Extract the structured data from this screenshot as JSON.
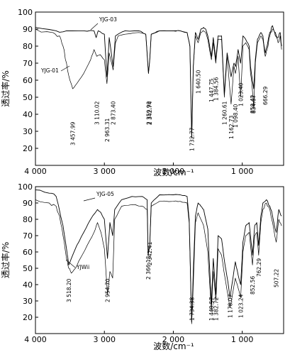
{
  "chart_data": [
    {
      "type": "line",
      "title": "",
      "xlabel": "波数/cm⁻¹",
      "ylabel": "透过率/%",
      "xlim": [
        4000,
        400
      ],
      "ylim": [
        10,
        100
      ],
      "x_ticks": [
        "4 000",
        "3 000",
        "2 000",
        "1 000"
      ],
      "x_tick_values": [
        4000,
        3000,
        2000,
        1000
      ],
      "y_ticks": [
        100,
        90,
        80,
        70,
        60,
        50,
        40,
        30,
        20
      ],
      "series": [
        {
          "name": "YJG-03",
          "x": [
            4000,
            3700,
            3550,
            3300,
            3150,
            3120,
            3090,
            3000,
            2963,
            2930,
            2873,
            2840,
            2700,
            2500,
            2400,
            2360,
            2342,
            2320,
            2200,
            2000,
            1900,
            1800,
            1760,
            1733,
            1710,
            1680,
            1640,
            1600,
            1560,
            1530,
            1500,
            1447,
            1420,
            1384,
            1350,
            1300,
            1260,
            1220,
            1162,
            1120,
            1098,
            1060,
            1023,
            990,
            950,
            900,
            880,
            860,
            834,
            810,
            780,
            730,
            700,
            666,
            640,
            600,
            560,
            520,
            480,
            450,
            430
          ],
          "y": [
            91,
            89,
            89,
            89,
            89,
            85,
            89,
            87,
            62,
            85,
            68,
            86,
            89,
            89,
            87,
            64,
            72,
            87,
            89,
            89,
            89,
            88,
            80,
            26,
            68,
            88,
            84,
            90,
            91,
            90,
            86,
            74,
            85,
            72,
            86,
            86,
            52,
            76,
            62,
            70,
            68,
            78,
            70,
            86,
            84,
            80,
            68,
            62,
            55,
            72,
            84,
            88,
            86,
            76,
            80,
            88,
            92,
            88,
            85,
            88,
            80
          ]
        },
        {
          "name": "YJG-01",
          "x": [
            4000,
            3750,
            3650,
            3600,
            3550,
            3500,
            3460,
            3400,
            3300,
            3200,
            3150,
            3110,
            3060,
            3000,
            2963,
            2930,
            2873,
            2840,
            2800,
            2700,
            2500,
            2400,
            2360,
            2342,
            2320,
            2200,
            2000,
            1900,
            1800,
            1760,
            1733,
            1710,
            1680,
            1640,
            1600,
            1560,
            1530,
            1500,
            1447,
            1420,
            1384,
            1350,
            1300,
            1260,
            1220,
            1162,
            1120,
            1098,
            1060,
            1023,
            990,
            950,
            900,
            880,
            860,
            834,
            810,
            780,
            730,
            700,
            666,
            640,
            600,
            560,
            520,
            480,
            450,
            430
          ],
          "y": [
            90,
            88,
            86,
            80,
            70,
            60,
            55,
            58,
            64,
            72,
            78,
            74,
            75,
            72,
            58,
            76,
            66,
            82,
            86,
            87,
            88,
            87,
            64,
            72,
            87,
            89,
            89,
            89,
            88,
            80,
            26,
            68,
            86,
            82,
            88,
            89,
            88,
            84,
            72,
            82,
            70,
            84,
            84,
            50,
            74,
            46,
            68,
            64,
            74,
            50,
            80,
            82,
            78,
            64,
            58,
            44,
            70,
            82,
            86,
            84,
            74,
            78,
            86,
            90,
            86,
            82,
            86,
            78
          ]
        }
      ],
      "legend": [
        "YJG-03",
        "YJG-01"
      ],
      "annotations": [
        {
          "x": 3457.99,
          "label": "3 457.99"
        },
        {
          "x": 3110.02,
          "label": "3 110.02"
        },
        {
          "x": 2963.31,
          "label": "2 963.31"
        },
        {
          "x": 2873.4,
          "label": "2 873.40"
        },
        {
          "x": 2359.9,
          "label": "2 359.90"
        },
        {
          "x": 2342.74,
          "label": "2 342.74"
        },
        {
          "x": 1732.77,
          "label": "1 732.77"
        },
        {
          "x": 1640.5,
          "label": "1 640.50"
        },
        {
          "x": 1447.75,
          "label": "1 447.75"
        },
        {
          "x": 1384.56,
          "label": "1 384.56"
        },
        {
          "x": 1260.61,
          "label": "1 260.61"
        },
        {
          "x": 1162.73,
          "label": "1 162.73"
        },
        {
          "x": 1098.4,
          "label": "1 098.40"
        },
        {
          "x": 1023.4,
          "label": "1 023.40"
        },
        {
          "x": 850.42,
          "label": "850.42"
        },
        {
          "x": 834.67,
          "label": "834.67"
        },
        {
          "x": 666.29,
          "label": "666.29"
        }
      ]
    },
    {
      "type": "line",
      "title": "",
      "xlabel": "波数/cm⁻¹",
      "ylabel": "透过率/%",
      "xlim": [
        4000,
        400
      ],
      "ylim": [
        10,
        100
      ],
      "x_ticks": [
        "4 000",
        "3 000",
        "2 000",
        "1 000"
      ],
      "x_tick_values": [
        4000,
        3000,
        2000,
        1000
      ],
      "y_ticks": [
        100,
        90,
        80,
        70,
        60,
        50,
        40,
        30,
        20
      ],
      "series": [
        {
          "name": "YJG-05",
          "x": [
            4000,
            3800,
            3700,
            3600,
            3550,
            3518,
            3480,
            3400,
            3300,
            3200,
            3100,
            3050,
            3000,
            2955,
            2920,
            2880,
            2850,
            2750,
            2600,
            2450,
            2380,
            2366,
            2342,
            2320,
            2200,
            2000,
            1900,
            1800,
            1770,
            1734,
            1710,
            1680,
            1640,
            1600,
            1560,
            1500,
            1448,
            1420,
            1382,
            1350,
            1300,
            1250,
            1210,
            1178,
            1150,
            1100,
            1060,
            1023,
            990,
            950,
            900,
            880,
            852,
            820,
            790,
            762,
            730,
            700,
            650,
            600,
            560,
            507,
            470,
            430
          ],
          "y": [
            98,
            96,
            94,
            76,
            62,
            52,
            56,
            64,
            72,
            80,
            86,
            84,
            80,
            56,
            78,
            70,
            86,
            92,
            94,
            94,
            92,
            58,
            64,
            90,
            95,
            95,
            95,
            94,
            80,
            17,
            48,
            82,
            90,
            88,
            86,
            74,
            28,
            56,
            34,
            70,
            68,
            52,
            42,
            32,
            40,
            54,
            46,
            40,
            66,
            76,
            78,
            70,
            58,
            76,
            78,
            64,
            82,
            90,
            92,
            88,
            82,
            72,
            86,
            82
          ]
        },
        {
          "name": "YJWii",
          "x": [
            4000,
            3800,
            3700,
            3650,
            3600,
            3550,
            3518,
            3480,
            3420,
            3350,
            3250,
            3150,
            3100,
            3050,
            3000,
            2955,
            2920,
            2880,
            2850,
            2750,
            2600,
            2450,
            2380,
            2366,
            2342,
            2320,
            2200,
            2000,
            1900,
            1800,
            1770,
            1734,
            1710,
            1680,
            1640,
            1600,
            1560,
            1500,
            1448,
            1420,
            1382,
            1350,
            1300,
            1250,
            1210,
            1178,
            1150,
            1100,
            1060,
            1023,
            990,
            950,
            900,
            880,
            852,
            820,
            790,
            762,
            730,
            700,
            650,
            600,
            560,
            507,
            470,
            430
          ],
          "y": [
            92,
            90,
            88,
            82,
            70,
            56,
            50,
            47,
            50,
            56,
            64,
            72,
            78,
            72,
            62,
            34,
            48,
            44,
            80,
            88,
            89,
            88,
            86,
            60,
            64,
            88,
            91,
            91,
            91,
            90,
            78,
            16,
            40,
            78,
            84,
            80,
            76,
            60,
            24,
            48,
            30,
            62,
            58,
            44,
            34,
            26,
            32,
            44,
            38,
            32,
            60,
            70,
            72,
            64,
            52,
            70,
            72,
            58,
            78,
            86,
            90,
            86,
            78,
            66,
            80,
            76
          ]
        }
      ],
      "legend": [
        "YJG-05",
        "YJWii"
      ],
      "annotations": [
        {
          "x": 3518.2,
          "label": "3 518.20"
        },
        {
          "x": 2954.7,
          "label": "2 954.70"
        },
        {
          "x": 2366.13,
          "label": "2 366.13"
        },
        {
          "x": 2342.41,
          "label": "2 342.41"
        },
        {
          "x": 1734.38,
          "label": "1 734.38"
        },
        {
          "x": 1448.57,
          "label": "1 448.57"
        },
        {
          "x": 1382.72,
          "label": "1 382.72"
        },
        {
          "x": 1178.07,
          "label": "1 178.07"
        },
        {
          "x": 1023.24,
          "label": "1 023.24"
        },
        {
          "x": 852.56,
          "label": "852.56"
        },
        {
          "x": 762.29,
          "label": "762.29"
        },
        {
          "x": 507.22,
          "label": "507.22"
        }
      ]
    }
  ]
}
